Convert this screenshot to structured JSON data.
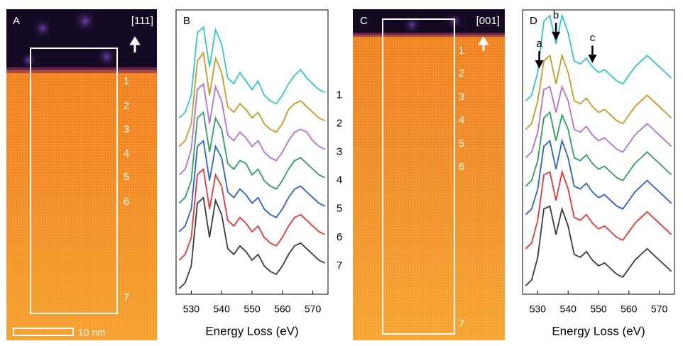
{
  "chart_data": [
    {
      "type": "line",
      "panel": "B",
      "xlabel": "Energy Loss (eV)",
      "xlim": [
        525,
        575
      ],
      "xticks": [
        530,
        540,
        550,
        560,
        570
      ],
      "ylim": [
        0,
        100
      ],
      "x": [
        526,
        528,
        530,
        532,
        534,
        536,
        538,
        540,
        542,
        544,
        546,
        548,
        550,
        552,
        554,
        556,
        558,
        560,
        562,
        564,
        566,
        568,
        570,
        572,
        574
      ],
      "series": [
        {
          "name": "1",
          "color": "#35c4c8",
          "values": [
            62,
            64,
            70,
            92,
            94,
            80,
            93,
            88,
            76,
            74,
            78,
            75,
            72,
            75,
            70,
            68,
            67,
            70,
            74,
            77,
            79,
            76,
            74,
            72,
            71
          ]
        },
        {
          "name": "2",
          "color": "#c49a25",
          "values": [
            52,
            54,
            60,
            82,
            85,
            70,
            83,
            78,
            66,
            64,
            67,
            65,
            62,
            64,
            60,
            58,
            57,
            60,
            65,
            67,
            68,
            66,
            64,
            62,
            61
          ]
        },
        {
          "name": "3",
          "color": "#b070d8",
          "values": [
            42,
            44,
            51,
            72,
            74,
            60,
            73,
            68,
            56,
            54,
            57,
            55,
            52,
            54,
            50,
            48,
            47,
            50,
            54,
            57,
            58,
            57,
            54,
            52,
            51
          ]
        },
        {
          "name": "4",
          "color": "#2e9e5e",
          "values": [
            32,
            34,
            40,
            62,
            64,
            50,
            62,
            58,
            46,
            44,
            47,
            46,
            42,
            44,
            40,
            38,
            37,
            40,
            44,
            47,
            48,
            46,
            44,
            42,
            41
          ]
        },
        {
          "name": "5",
          "color": "#2a62c8",
          "values": [
            22,
            24,
            30,
            52,
            54,
            40,
            52,
            48,
            36,
            34,
            37,
            35,
            32,
            34,
            30,
            28,
            27,
            30,
            34,
            37,
            38,
            36,
            34,
            32,
            31
          ]
        },
        {
          "name": "6",
          "color": "#e03838",
          "values": [
            12,
            14,
            20,
            42,
            44,
            30,
            42,
            38,
            26,
            24,
            27,
            25,
            22,
            24,
            20,
            18,
            17,
            20,
            24,
            27,
            28,
            26,
            24,
            22,
            21
          ]
        },
        {
          "name": "7",
          "color": "#3a3a3a",
          "values": [
            2,
            4,
            10,
            32,
            34,
            20,
            33,
            28,
            16,
            14,
            17,
            15,
            12,
            14,
            10,
            8,
            7,
            10,
            14,
            17,
            18,
            16,
            14,
            12,
            11
          ]
        }
      ]
    },
    {
      "type": "line",
      "panel": "D",
      "xlabel": "Energy Loss (eV)",
      "xlim": [
        525,
        575
      ],
      "xticks": [
        530,
        540,
        550,
        560,
        570
      ],
      "ylim": [
        0,
        100
      ],
      "x": [
        526,
        528,
        530,
        532,
        534,
        536,
        538,
        540,
        542,
        544,
        546,
        548,
        550,
        552,
        554,
        556,
        558,
        560,
        562,
        564,
        566,
        568,
        570,
        572,
        574
      ],
      "annotations": [
        {
          "text": "a",
          "x": 530.5
        },
        {
          "text": "b",
          "x": 536
        },
        {
          "text": "c",
          "x": 548
        }
      ],
      "series": [
        {
          "color": "#35c4c8",
          "values": [
            68,
            70,
            78,
            96,
            98,
            88,
            98,
            92,
            82,
            81,
            83,
            80,
            78,
            79,
            77,
            75,
            74,
            77,
            80,
            82,
            84,
            82,
            80,
            78,
            76
          ]
        },
        {
          "color": "#c49a25",
          "values": [
            58,
            60,
            68,
            82,
            84,
            74,
            84,
            78,
            68,
            67,
            69,
            66,
            64,
            65,
            63,
            61,
            60,
            63,
            66,
            68,
            70,
            68,
            66,
            64,
            62
          ]
        },
        {
          "color": "#b070d8",
          "values": [
            48,
            50,
            57,
            72,
            73,
            64,
            73,
            68,
            58,
            57,
            59,
            56,
            54,
            55,
            53,
            51,
            50,
            53,
            56,
            58,
            60,
            58,
            56,
            54,
            52
          ]
        },
        {
          "color": "#2e9e5e",
          "values": [
            38,
            40,
            47,
            62,
            64,
            54,
            63,
            58,
            48,
            47,
            49,
            46,
            44,
            45,
            43,
            41,
            40,
            43,
            46,
            48,
            50,
            48,
            46,
            44,
            42
          ]
        },
        {
          "color": "#2a62c8",
          "values": [
            28,
            30,
            37,
            52,
            54,
            44,
            54,
            48,
            38,
            37,
            39,
            36,
            34,
            35,
            33,
            31,
            30,
            33,
            36,
            38,
            40,
            38,
            36,
            34,
            32
          ]
        },
        {
          "color": "#e03838",
          "values": [
            16,
            18,
            26,
            42,
            43,
            33,
            43,
            37,
            27,
            26,
            28,
            25,
            23,
            24,
            22,
            20,
            19,
            22,
            25,
            27,
            29,
            27,
            25,
            23,
            21
          ]
        },
        {
          "color": "#3a3a3a",
          "values": [
            3,
            5,
            13,
            30,
            31,
            21,
            30,
            24,
            14,
            13,
            15,
            12,
            10,
            11,
            9,
            7,
            6,
            9,
            12,
            14,
            16,
            14,
            12,
            10,
            8
          ]
        }
      ]
    }
  ],
  "images": [
    {
      "panel": "A",
      "direction": "[111]",
      "scale_bar": "10 nm",
      "region_labels": [
        "1",
        "2",
        "3",
        "4",
        "5",
        "6",
        "7"
      ]
    },
    {
      "panel": "C",
      "direction": "[001]",
      "region_labels": [
        "1",
        "2",
        "3",
        "4",
        "5",
        "6",
        "7"
      ]
    }
  ]
}
